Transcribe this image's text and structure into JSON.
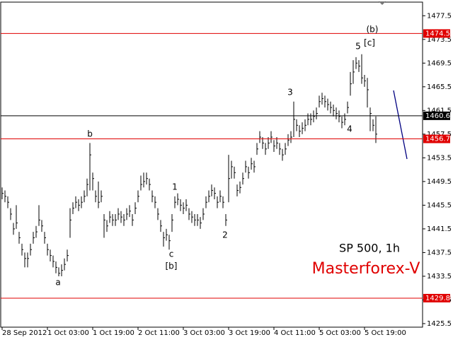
{
  "chart_data": {
    "type": "ohlc",
    "title": "SP 500, 1h",
    "subtitle": "Masterforex-V",
    "color": "#000000",
    "high": [
      1448.5,
      1448,
      1447,
      1445,
      1442.5,
      1445.5,
      1441,
      1439,
      1437.5,
      1437.5,
      1439,
      1441,
      1442,
      1445.5,
      1443,
      1441,
      1439,
      1438,
      1437,
      1436,
      1435,
      1435.5,
      1436.5,
      1438,
      1445,
      1446,
      1447,
      1446.5,
      1447,
      1448,
      1450,
      1456,
      1451,
      1448,
      1449.5,
      1448,
      1444,
      1443,
      1444.5,
      1444,
      1444,
      1445,
      1444.5,
      1444,
      1445,
      1445.5,
      1444,
      1446,
      1448,
      1450.5,
      1451,
      1451,
      1450,
      1448,
      1447,
      1445,
      1443,
      1441,
      1441.5,
      1440.5,
      1444,
      1447,
      1447.5,
      1446.5,
      1446,
      1446.5,
      1445,
      1444.5,
      1444,
      1444,
      1443.5,
      1445,
      1447,
      1448,
      1449,
      1448.5,
      1447,
      1448,
      1447,
      1444,
      1454,
      1453,
      1452,
      1449,
      1449.5,
      1451,
      1453,
      1452,
      1453.5,
      1453,
      1456,
      1458,
      1457,
      1456,
      1457,
      1458,
      1456.5,
      1457,
      1456,
      1455,
      1456,
      1457.5,
      1458,
      1463,
      1460,
      1459,
      1459.5,
      1460,
      1461,
      1461,
      1461.5,
      1462,
      1464,
      1464.5,
      1464,
      1463.5,
      1463,
      1462.5,
      1462,
      1461.5,
      1460.5,
      1461,
      1463,
      1468,
      1470,
      1470.5,
      1470,
      1471,
      1467.5,
      1467,
      1462,
      1460,
      1460.5
    ],
    "low": [
      1446.5,
      1446,
      1445,
      1443,
      1440.5,
      1441.5,
      1439,
      1437,
      1435,
      1435,
      1437,
      1439,
      1440,
      1442,
      1441,
      1439,
      1437,
      1436,
      1435,
      1434,
      1433.5,
      1433.5,
      1434.5,
      1436,
      1440,
      1444,
      1445,
      1444.5,
      1445,
      1446,
      1447,
      1448,
      1448,
      1446,
      1445,
      1446,
      1440,
      1441,
      1442.5,
      1442,
      1442,
      1443,
      1442.5,
      1442,
      1443,
      1443.5,
      1442,
      1444,
      1446,
      1448,
      1448.5,
      1449,
      1448,
      1446,
      1445,
      1443,
      1441,
      1438.5,
      1439.5,
      1438,
      1441,
      1445,
      1445.5,
      1444.5,
      1444,
      1444.5,
      1443,
      1442.5,
      1442,
      1442,
      1441.5,
      1443,
      1445,
      1446,
      1447,
      1446.5,
      1445,
      1446,
      1445,
      1442,
      1446,
      1450,
      1450,
      1447,
      1447.5,
      1449,
      1451,
      1450,
      1451.5,
      1451,
      1454,
      1456,
      1455,
      1454,
      1455,
      1456,
      1454.5,
      1455,
      1454,
      1453,
      1454,
      1455.5,
      1456,
      1457,
      1458,
      1457,
      1457.5,
      1458,
      1459,
      1459,
      1459.5,
      1460,
      1462,
      1462.5,
      1462,
      1461.5,
      1461,
      1460.5,
      1460,
      1459.5,
      1458.5,
      1459,
      1461,
      1464,
      1466,
      1468.5,
      1468,
      1466,
      1465.5,
      1462,
      1458,
      1458,
      1456
    ],
    "close": [
      1447.5,
      1447,
      1446,
      1444,
      1441.5,
      1442.5,
      1440,
      1438,
      1436.5,
      1436.5,
      1438,
      1440,
      1441,
      1443,
      1442,
      1440,
      1438,
      1437,
      1436,
      1435,
      1434,
      1434.5,
      1435.5,
      1437,
      1443,
      1445,
      1446,
      1445.5,
      1446,
      1447,
      1449,
      1454,
      1450,
      1447,
      1446,
      1447,
      1443,
      1442,
      1443.5,
      1443,
      1443,
      1444,
      1443.5,
      1443,
      1444,
      1444.5,
      1443,
      1445,
      1447,
      1449,
      1449.5,
      1450,
      1449,
      1447,
      1446,
      1444,
      1442,
      1440,
      1440.5,
      1439.5,
      1443,
      1446,
      1446.5,
      1445.5,
      1445,
      1445.5,
      1444,
      1443.5,
      1443,
      1443,
      1442.5,
      1444,
      1446,
      1447,
      1448,
      1447.5,
      1446,
      1447,
      1446,
      1443,
      1450,
      1452,
      1451,
      1448,
      1448.5,
      1450,
      1452,
      1451,
      1452.5,
      1452,
      1455,
      1457,
      1456,
      1455,
      1456,
      1457,
      1455.5,
      1456,
      1455,
      1454,
      1455,
      1456.5,
      1457,
      1460,
      1459,
      1458,
      1458.5,
      1459,
      1460,
      1460,
      1460.5,
      1461,
      1463,
      1463.5,
      1463,
      1462.5,
      1462,
      1461.5,
      1461,
      1460.5,
      1459.5,
      1460,
      1462,
      1466,
      1468,
      1469.5,
      1469,
      1467,
      1466.5,
      1465,
      1461,
      1459,
      1457.5
    ],
    "levels": [
      {
        "value": 1474.5,
        "color": "#e00000"
      },
      {
        "value": 1460.6,
        "color": "#000000"
      },
      {
        "value": 1456.7,
        "color": "#e00000"
      },
      {
        "value": 1429.8,
        "color": "#e00000"
      }
    ],
    "xlim": [
      -0.5,
      148.5
    ],
    "xticks": [
      {
        "value": 0,
        "label": "28 Sep 2012"
      },
      {
        "value": 16,
        "label": "1 Oct 03:00"
      },
      {
        "value": 32,
        "label": "1 Oct 19:00"
      },
      {
        "value": 48,
        "label": "2 Oct 11:00"
      },
      {
        "value": 64,
        "label": "3 Oct 03:00"
      },
      {
        "value": 80,
        "label": "3 Oct 19:00"
      },
      {
        "value": 96,
        "label": "4 Oct 11:00"
      },
      {
        "value": 112,
        "label": "5 Oct 03:00"
      },
      {
        "value": 128,
        "label": "5 Oct 19:00"
      }
    ],
    "ylim": [
      1424.9,
      1479.8
    ],
    "yticks": [
      1477.5,
      1473.5,
      1469.5,
      1465.5,
      1461.5,
      1457.5,
      1453.5,
      1449.5,
      1445.5,
      1441.5,
      1437.5,
      1433.5,
      1429.5,
      1425.5
    ],
    "annotations": [
      "a",
      "b",
      "c",
      "[b]",
      "1",
      "2",
      "3",
      "4",
      "5",
      "(b)",
      "[c]"
    ]
  }
}
